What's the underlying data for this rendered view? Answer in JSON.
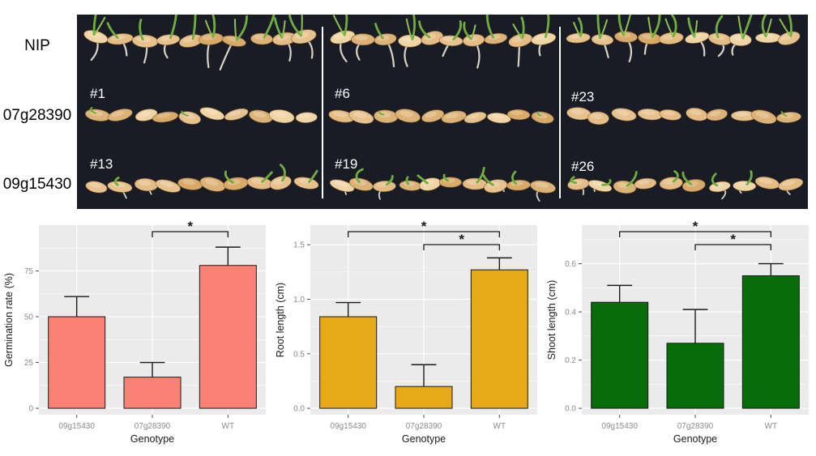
{
  "photo": {
    "background": "#1a1c25",
    "divider_color": "#ffffff",
    "seeds_per_row": 10,
    "row_labels": [
      "NIP",
      "07g28390",
      "09g15430"
    ],
    "panels": [
      {
        "replicates": [
          "",
          "#1",
          "#13"
        ]
      },
      {
        "replicates": [
          "",
          "#6",
          "#19"
        ]
      },
      {
        "replicates": [
          "",
          "#23",
          "#26"
        ]
      }
    ]
  },
  "chart_style": {
    "panel_bg": "#EBEBEB",
    "grid_color": "#FFFFFF",
    "tick_text_color": "#8a8a8a",
    "title_text_color": "#1a1a1a",
    "bar_stroke": "#1a1a1a",
    "error_stroke": "#1a1a1a",
    "bracket_stroke": "#1a1a1a"
  },
  "chart_data": [
    {
      "type": "bar",
      "title": "",
      "ylabel": "Germination rate (%)",
      "xlabel": "Genotype",
      "categories": [
        "09g15430",
        "07g28390",
        "WT"
      ],
      "values": [
        50,
        17,
        78
      ],
      "errors": [
        11,
        8,
        10
      ],
      "yticks": [
        0,
        25,
        50,
        75
      ],
      "ytick_labels": [
        "0",
        "25",
        "50",
        "75"
      ],
      "ylim": [
        0,
        100
      ],
      "bar_color": "#F98176",
      "grid": true,
      "legend": "none",
      "significance": [
        {
          "from": "07g28390",
          "to": "WT",
          "label": "*"
        }
      ]
    },
    {
      "type": "bar",
      "title": "",
      "ylabel": "Root length (cm)",
      "xlabel": "Genotype",
      "categories": [
        "09g15430",
        "07g28390",
        "WT"
      ],
      "values": [
        0.84,
        0.2,
        1.27
      ],
      "errors": [
        0.13,
        0.2,
        0.11
      ],
      "yticks": [
        0,
        0.5,
        1.0,
        1.5
      ],
      "ytick_labels": [
        "0.0",
        "0.5",
        "1.0",
        "1.5"
      ],
      "ylim": [
        0,
        1.68
      ],
      "bar_color": "#E8A919",
      "grid": true,
      "legend": "none",
      "significance": [
        {
          "from": "09g15430",
          "to": "WT",
          "label": "*"
        },
        {
          "from": "07g28390",
          "to": "WT",
          "label": "*"
        }
      ]
    },
    {
      "type": "bar",
      "title": "",
      "ylabel": "Shoot length (cm)",
      "xlabel": "Genotype",
      "categories": [
        "09g15430",
        "07g28390",
        "WT"
      ],
      "values": [
        0.44,
        0.27,
        0.55
      ],
      "errors": [
        0.07,
        0.14,
        0.05
      ],
      "yticks": [
        0,
        0.2,
        0.4,
        0.6
      ],
      "ytick_labels": [
        "0.0",
        "0.2",
        "0.4",
        "0.6"
      ],
      "ylim": [
        0,
        0.76
      ],
      "bar_color": "#086D08",
      "grid": true,
      "legend": "none",
      "significance": [
        {
          "from": "09g15430",
          "to": "WT",
          "label": "*"
        },
        {
          "from": "07g28390",
          "to": "WT",
          "label": "*"
        }
      ]
    }
  ]
}
